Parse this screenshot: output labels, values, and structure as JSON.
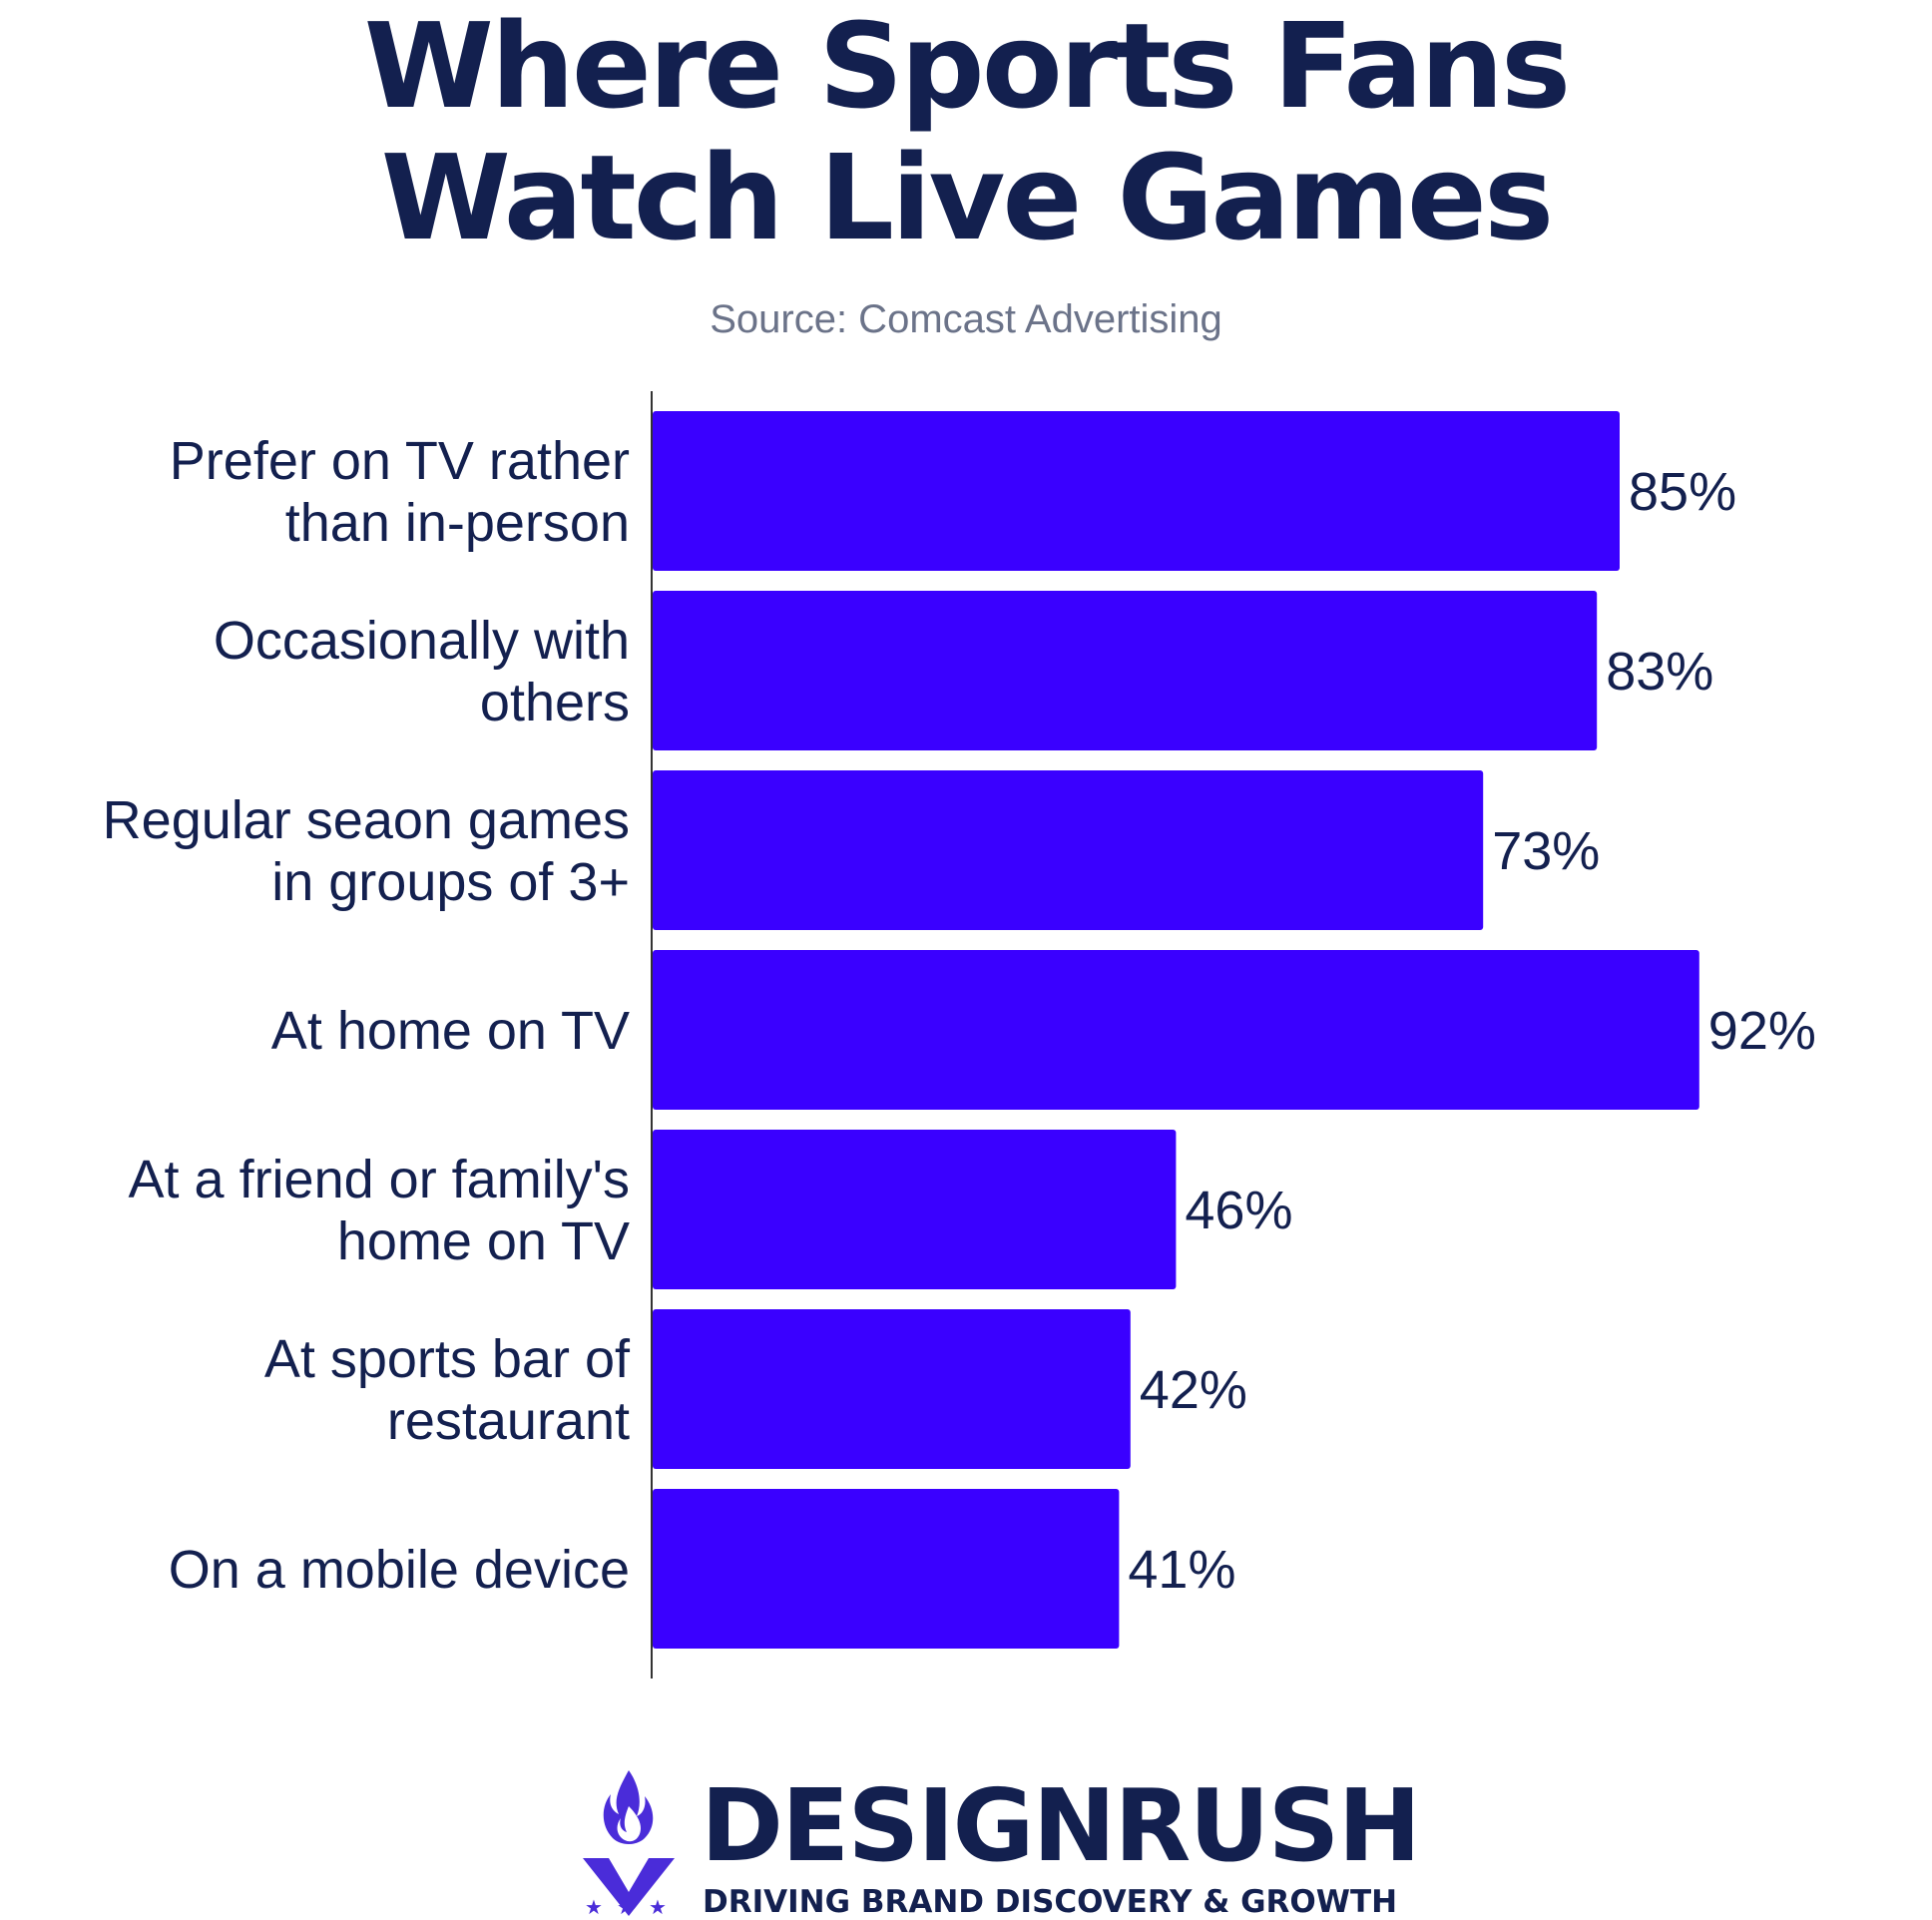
{
  "header": {
    "title_line1": "Where Sports Fans",
    "title_line2": "Watch Live Games",
    "source": "Source: Comcast Advertising"
  },
  "chart_data": {
    "type": "bar",
    "orientation": "horizontal",
    "title": "Where Sports Fans Watch Live Games",
    "subtitle": "Source: Comcast Advertising",
    "categories": [
      [
        "Prefer on TV rather",
        "than in-person"
      ],
      [
        "Occasionally with",
        "others"
      ],
      [
        "Regular seaon games",
        "in groups of 3+"
      ],
      [
        "At home on TV"
      ],
      [
        "At a friend or family's",
        "home on TV"
      ],
      [
        "At sports bar of",
        "restaurant"
      ],
      [
        "On a mobile device"
      ]
    ],
    "values": [
      85,
      83,
      73,
      92,
      46,
      42,
      41
    ],
    "value_labels": [
      "85%",
      "83%",
      "73%",
      "92%",
      "46%",
      "42%",
      "41%"
    ],
    "xlim": [
      0,
      100
    ],
    "grid": false,
    "bar_color": "#3a00ff",
    "axis_color": "#333333"
  },
  "brand": {
    "name": "DESIGNRUSH",
    "tagline": "DRIVING BRAND DISCOVERY & GROWTH",
    "logo_icon": "designrush-flame-logo-icon",
    "color": "#13204f",
    "accent": "#4a2cd9"
  }
}
